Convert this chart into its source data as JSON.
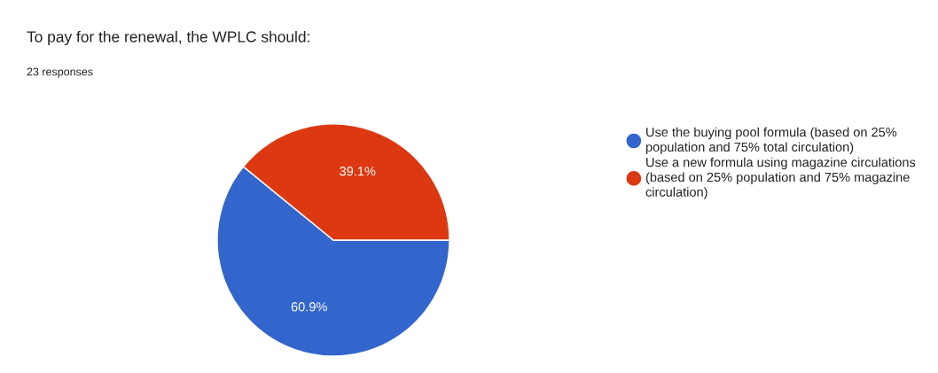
{
  "chart_data": {
    "type": "pie",
    "title": "To pay for the renewal, the WPLC should:",
    "subtitle": "23 responses",
    "categories": [
      "Use the buying pool formula (based on 25% population and 75% total circulation)",
      "Use a new formula using magazine circulations (based on 25% population and 75% magazine circulation)"
    ],
    "values": [
      60.9,
      39.1
    ],
    "colors": [
      "#3366cc",
      "#dc3912"
    ],
    "value_labels": [
      "60.9%",
      "39.1%"
    ],
    "legend": "right"
  }
}
